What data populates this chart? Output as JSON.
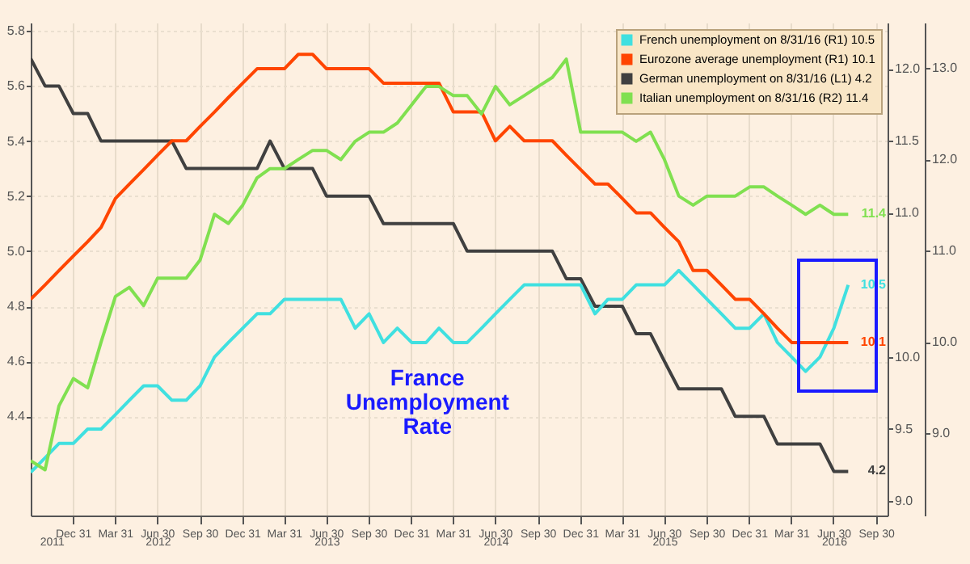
{
  "chart_data": {
    "type": "line",
    "x": [
      "2011-10",
      "2011-11",
      "2011-12",
      "2012-01",
      "2012-02",
      "2012-03",
      "2012-04",
      "2012-05",
      "2012-06",
      "2012-07",
      "2012-08",
      "2012-09",
      "2012-10",
      "2012-11",
      "2012-12",
      "2013-01",
      "2013-02",
      "2013-03",
      "2013-04",
      "2013-05",
      "2013-06",
      "2013-07",
      "2013-08",
      "2013-09",
      "2013-10",
      "2013-11",
      "2013-12",
      "2014-01",
      "2014-02",
      "2014-03",
      "2014-04",
      "2014-05",
      "2014-06",
      "2014-07",
      "2014-08",
      "2014-09",
      "2014-10",
      "2014-11",
      "2014-12",
      "2015-01",
      "2015-02",
      "2015-03",
      "2015-04",
      "2015-05",
      "2015-06",
      "2015-07",
      "2015-08",
      "2015-09",
      "2015-10",
      "2015-11",
      "2015-12",
      "2016-01",
      "2016-02",
      "2016-03",
      "2016-04",
      "2016-05",
      "2016-06",
      "2016-07",
      "2016-08"
    ],
    "series": [
      {
        "name": "French unemployment on 8/31/16 (R1) 10.5",
        "color": "#40e0e0",
        "axis": "y2",
        "values": [
          9.2,
          9.3,
          9.4,
          9.4,
          9.5,
          9.5,
          9.6,
          9.7,
          9.8,
          9.8,
          9.7,
          9.7,
          9.8,
          10.0,
          10.1,
          10.2,
          10.3,
          10.3,
          10.4,
          10.4,
          10.4,
          10.4,
          10.4,
          10.2,
          10.3,
          10.1,
          10.2,
          10.1,
          10.1,
          10.2,
          10.1,
          10.1,
          10.2,
          10.3,
          10.4,
          10.5,
          10.5,
          10.5,
          10.5,
          10.5,
          10.3,
          10.4,
          10.4,
          10.5,
          10.5,
          10.5,
          10.6,
          10.5,
          10.4,
          10.3,
          10.2,
          10.2,
          10.3,
          10.1,
          10.0,
          9.9,
          10.0,
          10.2,
          10.5
        ],
        "value_labels": [
          null,
          null,
          null,
          null,
          null,
          null,
          null,
          null,
          null,
          null,
          null,
          null,
          null,
          null,
          null,
          null,
          null,
          null,
          null,
          null,
          null,
          null,
          null,
          null,
          null,
          null,
          null,
          null,
          null,
          null,
          null,
          null,
          null,
          null,
          null,
          null,
          null,
          null,
          null,
          null,
          null,
          null,
          null,
          null,
          null,
          null,
          null,
          null,
          null,
          null,
          null,
          null,
          null,
          null,
          null,
          null,
          null,
          null,
          "10.5"
        ]
      },
      {
        "name": "Eurozone average unemployment (R1) 10.1",
        "color": "#ff4500",
        "axis": "y2",
        "values": [
          10.4,
          10.5,
          10.6,
          10.7,
          10.8,
          10.9,
          11.1,
          11.2,
          11.3,
          11.4,
          11.5,
          11.5,
          11.6,
          11.7,
          11.8,
          11.9,
          12.0,
          12.0,
          12.0,
          12.1,
          12.1,
          12.0,
          12.0,
          12.0,
          12.0,
          11.9,
          11.9,
          11.9,
          11.9,
          11.9,
          11.7,
          11.7,
          11.7,
          11.5,
          11.6,
          11.5,
          11.5,
          11.5,
          11.4,
          11.3,
          11.2,
          11.2,
          11.1,
          11.0,
          11.0,
          10.9,
          10.8,
          10.6,
          10.6,
          10.5,
          10.4,
          10.4,
          10.3,
          10.2,
          10.1,
          10.1,
          10.1,
          10.1,
          10.1
        ],
        "value_labels": [
          null,
          null,
          null,
          null,
          null,
          null,
          null,
          null,
          null,
          null,
          null,
          null,
          null,
          null,
          null,
          null,
          null,
          null,
          null,
          null,
          null,
          null,
          null,
          null,
          null,
          null,
          null,
          null,
          null,
          null,
          null,
          null,
          null,
          null,
          null,
          null,
          null,
          null,
          null,
          null,
          null,
          null,
          null,
          null,
          null,
          null,
          null,
          null,
          null,
          null,
          null,
          null,
          null,
          null,
          null,
          null,
          null,
          null,
          "10.1"
        ]
      },
      {
        "name": "German unemployment on 8/31/16 (L1) 4.2",
        "color": "#404040",
        "axis": "y",
        "values": [
          5.7,
          5.6,
          5.6,
          5.5,
          5.5,
          5.4,
          5.4,
          5.4,
          5.4,
          5.4,
          5.4,
          5.3,
          5.3,
          5.3,
          5.3,
          5.3,
          5.3,
          5.4,
          5.3,
          5.3,
          5.3,
          5.2,
          5.2,
          5.2,
          5.2,
          5.1,
          5.1,
          5.1,
          5.1,
          5.1,
          5.1,
          5.0,
          5.0,
          5.0,
          5.0,
          5.0,
          5.0,
          5.0,
          4.9,
          4.9,
          4.8,
          4.8,
          4.8,
          4.7,
          4.7,
          4.6,
          4.5,
          4.5,
          4.5,
          4.5,
          4.4,
          4.4,
          4.4,
          4.3,
          4.3,
          4.3,
          4.3,
          4.2,
          4.2
        ],
        "value_labels": [
          null,
          null,
          null,
          null,
          null,
          null,
          null,
          null,
          null,
          null,
          null,
          null,
          null,
          null,
          null,
          null,
          null,
          null,
          null,
          null,
          null,
          null,
          null,
          null,
          null,
          null,
          null,
          null,
          null,
          null,
          null,
          null,
          null,
          null,
          null,
          null,
          null,
          null,
          null,
          null,
          null,
          null,
          null,
          null,
          null,
          null,
          null,
          null,
          null,
          null,
          null,
          null,
          null,
          null,
          null,
          null,
          null,
          null,
          "4.2"
        ]
      },
      {
        "name": "Italian unemployment on 8/31/16 (R2) 11.4",
        "color": "#80e050",
        "axis": "y3",
        "values": [
          8.7,
          8.6,
          9.3,
          9.6,
          9.5,
          10.0,
          10.5,
          10.6,
          10.4,
          10.7,
          10.7,
          10.7,
          10.9,
          11.4,
          11.3,
          11.5,
          11.8,
          11.9,
          11.9,
          12.0,
          12.1,
          12.1,
          12.0,
          12.2,
          12.3,
          12.3,
          12.4,
          12.6,
          12.8,
          12.8,
          12.7,
          12.7,
          12.5,
          12.8,
          12.6,
          12.7,
          12.8,
          12.9,
          13.1,
          12.3,
          12.3,
          12.3,
          12.3,
          12.2,
          12.3,
          12.0,
          11.6,
          11.5,
          11.6,
          11.6,
          11.6,
          11.7,
          11.7,
          11.6,
          11.5,
          11.4,
          11.5,
          11.4,
          11.4
        ],
        "value_labels": [
          null,
          null,
          null,
          null,
          null,
          null,
          null,
          null,
          null,
          null,
          null,
          null,
          null,
          null,
          null,
          null,
          null,
          null,
          null,
          null,
          null,
          null,
          null,
          null,
          null,
          null,
          null,
          null,
          null,
          null,
          null,
          null,
          null,
          null,
          null,
          null,
          null,
          null,
          null,
          null,
          null,
          null,
          null,
          null,
          null,
          null,
          null,
          null,
          null,
          null,
          null,
          null,
          null,
          null,
          null,
          null,
          null,
          null,
          "11.4"
        ]
      }
    ],
    "xlim": [
      "2011-10-01",
      "2016-10-25"
    ],
    "xticks": [
      {
        "value": "2011-12-31",
        "label": "Dec 31"
      },
      {
        "value": "2012-03-31",
        "label": "Mar 31"
      },
      {
        "value": "2012-06-30",
        "label": "Jun 30"
      },
      {
        "value": "2012-09-30",
        "label": "Sep 30"
      },
      {
        "value": "2012-12-31",
        "label": "Dec 31"
      },
      {
        "value": "2013-03-31",
        "label": "Mar 31"
      },
      {
        "value": "2013-06-30",
        "label": "Jun 30"
      },
      {
        "value": "2013-09-30",
        "label": "Sep 30"
      },
      {
        "value": "2013-12-31",
        "label": "Dec 31"
      },
      {
        "value": "2014-03-31",
        "label": "Mar 31"
      },
      {
        "value": "2014-06-30",
        "label": "Jun 30"
      },
      {
        "value": "2014-09-30",
        "label": "Sep 30"
      },
      {
        "value": "2014-12-31",
        "label": "Dec 31"
      },
      {
        "value": "2015-03-31",
        "label": "Mar 31"
      },
      {
        "value": "2015-06-30",
        "label": "Jun 30"
      },
      {
        "value": "2015-09-30",
        "label": "Sep 30"
      },
      {
        "value": "2015-12-31",
        "label": "Dec 31"
      },
      {
        "value": "2016-03-31",
        "label": "Mar 31"
      },
      {
        "value": "2016-06-30",
        "label": "Jun 30"
      },
      {
        "value": "2016-09-30",
        "label": "Sep 30"
      }
    ],
    "ylim": [
      4.04,
      5.83
    ],
    "yticks": [
      {
        "value": 4.4,
        "label": "4.4"
      },
      {
        "value": 4.6,
        "label": "4.6"
      },
      {
        "value": 4.8,
        "label": "4.8"
      },
      {
        "value": 5,
        "label": "5.0"
      },
      {
        "value": 5.2,
        "label": "5.2"
      },
      {
        "value": 5.4,
        "label": "5.4"
      },
      {
        "value": 5.6,
        "label": "5.6"
      },
      {
        "value": 5.8,
        "label": "5.8"
      }
    ],
    "y2lim": [
      8.9,
      12.32
    ],
    "y2ticks": [
      {
        "value": 9,
        "label": "9.0"
      },
      {
        "value": 9.5,
        "label": "9.5"
      },
      {
        "value": 10,
        "label": "10.0"
      },
      {
        "value": 11,
        "label": "11.0"
      },
      {
        "value": 11.5,
        "label": "11.5"
      },
      {
        "value": 12,
        "label": "12.0"
      }
    ],
    "y3lim": [
      8.1,
      13.5
    ],
    "y3ticks": [
      {
        "value": 9,
        "label": "9.0"
      },
      {
        "value": 10,
        "label": "10.0"
      },
      {
        "value": 11,
        "label": "11.0"
      },
      {
        "value": 12,
        "label": "12.0"
      },
      {
        "value": 13,
        "label": "13.0"
      }
    ],
    "x2lim": [
      "2011-10-01",
      "2016-10-25"
    ],
    "x2ticks": [
      {
        "value": "2011-11-15",
        "label": "2011"
      },
      {
        "value": "2012-07-01",
        "label": "2012"
      },
      {
        "value": "2013-07-01",
        "label": "2013"
      },
      {
        "value": "2014-07-01",
        "label": "2014"
      },
      {
        "value": "2015-07-01",
        "label": "2015"
      },
      {
        "value": "2016-07-01",
        "label": "2016"
      }
    ],
    "annotations": [
      "France Unemployment Rate"
    ],
    "grid": true,
    "legend": "top right"
  }
}
